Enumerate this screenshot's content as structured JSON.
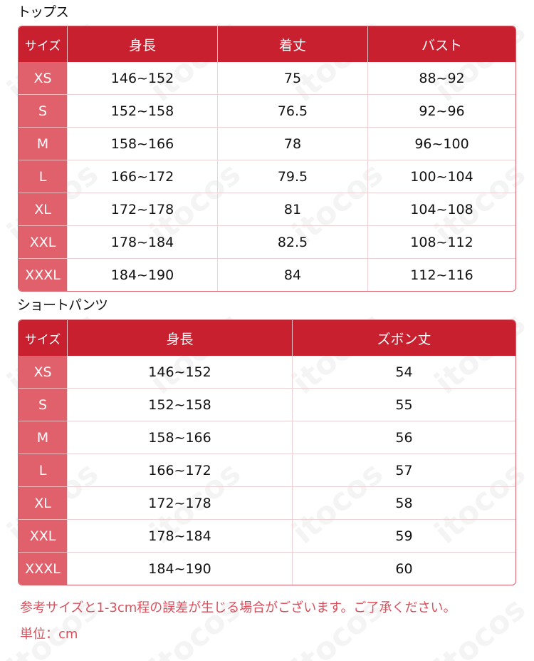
{
  "watermark": "itocos",
  "colors": {
    "header": "#c8202f",
    "size_col": "#e0606b",
    "note": "#d9505c"
  },
  "tops": {
    "title": "トップス",
    "headers": [
      "サイズ",
      "身長",
      "着丈",
      "バスト"
    ],
    "rows": [
      [
        "XS",
        "146~152",
        "75",
        "88~92"
      ],
      [
        "S",
        "152~158",
        "76.5",
        "92~96"
      ],
      [
        "M",
        "158~166",
        "78",
        "96~100"
      ],
      [
        "L",
        "166~172",
        "79.5",
        "100~104"
      ],
      [
        "XL",
        "172~178",
        "81",
        "104~108"
      ],
      [
        "XXL",
        "178~184",
        "82.5",
        "108~112"
      ],
      [
        "XXXL",
        "184~190",
        "84",
        "112~116"
      ]
    ]
  },
  "shorts": {
    "title": "ショートパンツ",
    "headers": [
      "サイズ",
      "身長",
      "ズボン丈"
    ],
    "rows": [
      [
        "XS",
        "146~152",
        "54"
      ],
      [
        "S",
        "152~158",
        "55"
      ],
      [
        "M",
        "158~166",
        "56"
      ],
      [
        "L",
        "166~172",
        "57"
      ],
      [
        "XL",
        "172~178",
        "58"
      ],
      [
        "XXL",
        "178~184",
        "59"
      ],
      [
        "XXXL",
        "184~190",
        "60"
      ]
    ]
  },
  "notes": {
    "disclaimer": "参考サイズと1-3cm程の誤差が生じる場合がございます。ご了承ください。",
    "unit": "単位：cm"
  }
}
